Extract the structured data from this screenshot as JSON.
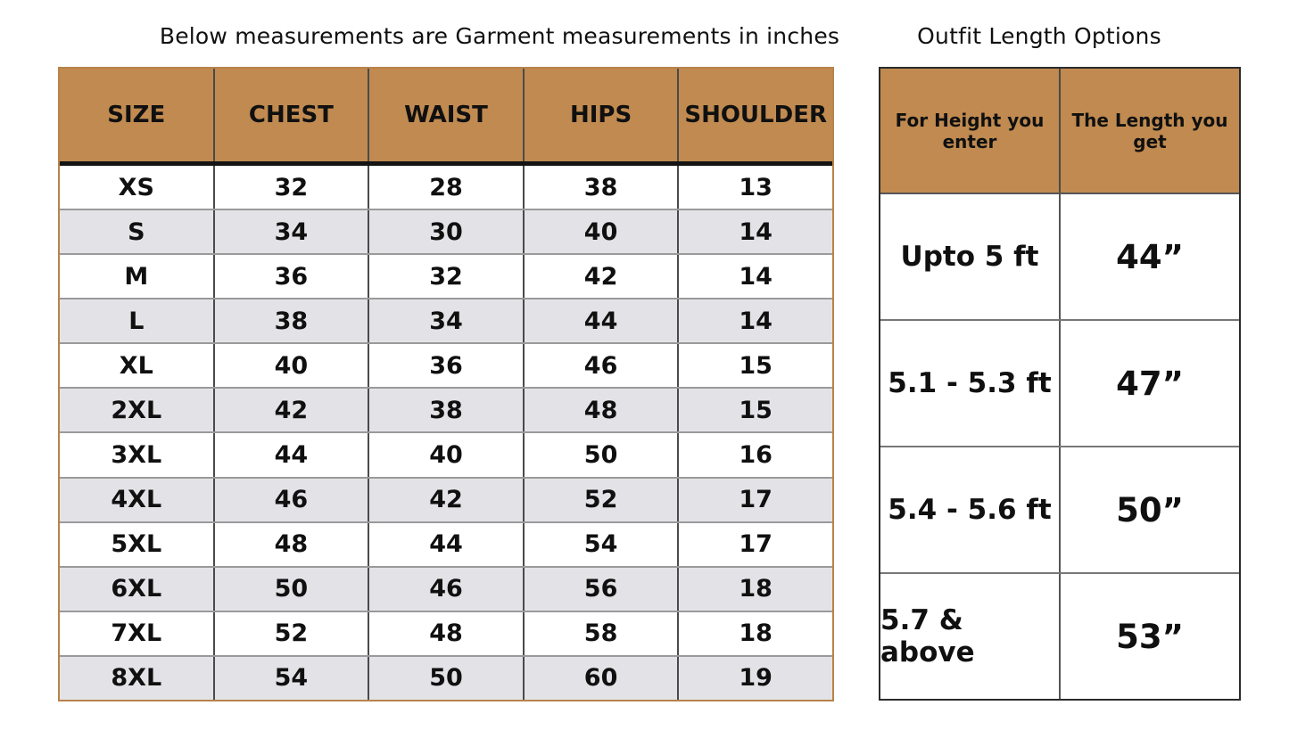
{
  "page": {
    "left_title": "Below measurements are Garment measurements in inches",
    "right_title": "Outfit Length Options"
  },
  "colors": {
    "table_header_bg": "#c08a50",
    "alt_row_bg": "#e3e3e7",
    "left_table_border": "#b8834a",
    "right_table_border": "#2b2b2b",
    "header_divider": "#141414",
    "text": "#101010"
  },
  "chart_data": [
    {
      "type": "table",
      "title": "Below measurements are Garment measurements in inches",
      "columns": [
        "SIZE",
        "CHEST",
        "WAIST",
        "HIPS",
        "SHOULDER"
      ],
      "rows": [
        [
          "XS",
          "32",
          "28",
          "38",
          "13"
        ],
        [
          "S",
          "34",
          "30",
          "40",
          "14"
        ],
        [
          "M",
          "36",
          "32",
          "42",
          "14"
        ],
        [
          "L",
          "38",
          "34",
          "44",
          "14"
        ],
        [
          "XL",
          "40",
          "36",
          "46",
          "15"
        ],
        [
          "2XL",
          "42",
          "38",
          "48",
          "15"
        ],
        [
          "3XL",
          "44",
          "40",
          "50",
          "16"
        ],
        [
          "4XL",
          "46",
          "42",
          "52",
          "17"
        ],
        [
          "5XL",
          "48",
          "44",
          "54",
          "17"
        ],
        [
          "6XL",
          "50",
          "46",
          "56",
          "18"
        ],
        [
          "7XL",
          "52",
          "48",
          "58",
          "18"
        ],
        [
          "8XL",
          "54",
          "50",
          "60",
          "19"
        ]
      ]
    },
    {
      "type": "table",
      "title": "Outfit Length Options",
      "columns": [
        "For Height you enter",
        "The Length you get"
      ],
      "rows": [
        [
          "Upto 5 ft",
          "44”"
        ],
        [
          "5.1 - 5.3 ft",
          "47”"
        ],
        [
          "5.4 - 5.6 ft",
          "50”"
        ],
        [
          "5.7 & above",
          "53”"
        ]
      ]
    }
  ]
}
